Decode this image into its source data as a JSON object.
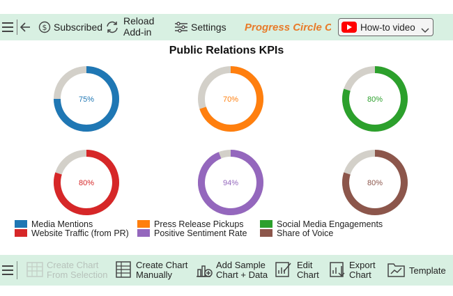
{
  "toolbar": {
    "subscribed_label": "Subscribed",
    "reload_label_line1": "Reload",
    "reload_label_line2": "Add-in",
    "settings_label": "Settings",
    "app_title": "Progress Circle C...",
    "howto_label": "How-to video"
  },
  "chart_data": {
    "type": "donut",
    "title": "Public Relations KPIs",
    "track_color": "#d3d0c9",
    "items": [
      {
        "name": "Media Mentions",
        "value": 75,
        "label": "75%",
        "color": "#1f77b4"
      },
      {
        "name": "Press Release Pickups",
        "value": 70,
        "label": "70%",
        "color": "#ff7f0e"
      },
      {
        "name": "Social Media Engagements",
        "value": 80,
        "label": "80%",
        "color": "#2ca02c"
      },
      {
        "name": "Website Traffic (from PR)",
        "value": 80,
        "label": "80%",
        "color": "#d62728"
      },
      {
        "name": "Positive Sentiment Rate",
        "value": 94,
        "label": "94%",
        "color": "#9467bd"
      },
      {
        "name": "Share of Voice",
        "value": 80,
        "label": "80%",
        "color": "#8c564b"
      }
    ],
    "legend_position": "bottom-left"
  },
  "bottom": {
    "create_from_sel_line1": "Create Chart",
    "create_from_sel_line2": "From Selection",
    "create_manual_line1": "Create Chart",
    "create_manual_line2": "Manually",
    "add_sample_line1": "Add Sample",
    "add_sample_line2": "Chart + Data",
    "edit_line1": "Edit",
    "edit_line2": "Chart",
    "export_line1": "Export",
    "export_line2": "Chart",
    "template_label": "Template"
  }
}
